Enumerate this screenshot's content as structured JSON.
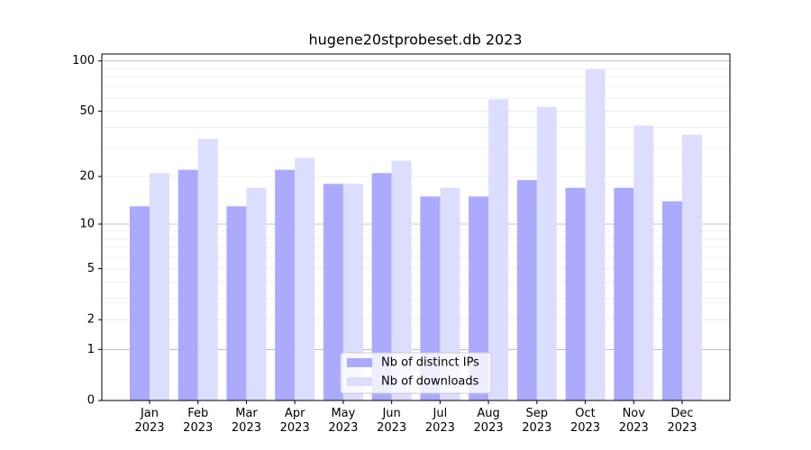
{
  "chart_data": {
    "type": "bar",
    "title": "hugene20stprobeset.db 2023",
    "scale": "log1p",
    "categories": [
      "Jan 2023",
      "Feb 2023",
      "Mar 2023",
      "Apr 2023",
      "May 2023",
      "Jun 2023",
      "Jul 2023",
      "Aug 2023",
      "Sep 2023",
      "Oct 2023",
      "Nov 2023",
      "Dec 2023"
    ],
    "series": [
      {
        "name": "Nb of distinct IPs",
        "color": "#aaaaff",
        "values": [
          13,
          22,
          13,
          22,
          18,
          21,
          15,
          15,
          19,
          17,
          17,
          14
        ]
      },
      {
        "name": "Nb of downloads",
        "color": "#ddddff",
        "values": [
          21,
          34,
          17,
          26,
          18,
          25,
          17,
          59,
          53,
          89,
          41,
          36
        ]
      }
    ],
    "ylim": [
      0,
      110
    ],
    "yticks": [
      0,
      1,
      2,
      5,
      10,
      20,
      50,
      100
    ],
    "yminor": [
      3,
      4,
      6,
      7,
      8,
      9,
      30,
      40,
      60,
      70,
      80,
      90
    ],
    "grid": true,
    "legend": "bottom-center"
  }
}
